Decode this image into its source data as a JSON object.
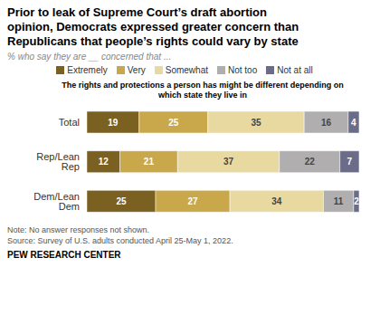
{
  "chart_data": {
    "type": "bar",
    "title": "Prior to leak of Supreme Court’s draft abortion\nopinion, Democrats expressed greater concern than\nRepublicans that people’s rights could vary by state",
    "subtitle": "% who say they are __ concerned that ...",
    "annotations": [
      "The rights and protections a person has might be different depending on\nwhich state they live in",
      "Note: No answer responses not shown.",
      "Source: Survey of U.S. adults conducted April 25-May 1, 2022.",
      "PEW RESEARCH CENTER"
    ],
    "categories": [
      "Total",
      "Rep/Lean Rep",
      "Dem/Lean Dem"
    ],
    "series": [
      {
        "name": "Extremely",
        "color": "#7a6021",
        "values": [
          19,
          12,
          25
        ]
      },
      {
        "name": "Very",
        "color": "#c9a84c",
        "values": [
          25,
          21,
          27
        ]
      },
      {
        "name": "Somewhat",
        "color": "#e8d9a0",
        "values": [
          35,
          37,
          34
        ]
      },
      {
        "name": "Not too",
        "color": "#b0aeae",
        "values": [
          16,
          22,
          11
        ]
      },
      {
        "name": "Not at all",
        "color": "#6b6b8a",
        "values": [
          4,
          7,
          2
        ]
      }
    ],
    "xlim": [
      0,
      100
    ],
    "orientation": "horizontal",
    "stacked": true,
    "data_labels": true,
    "tick_labels": "y",
    "grid": false,
    "legend": "top"
  }
}
